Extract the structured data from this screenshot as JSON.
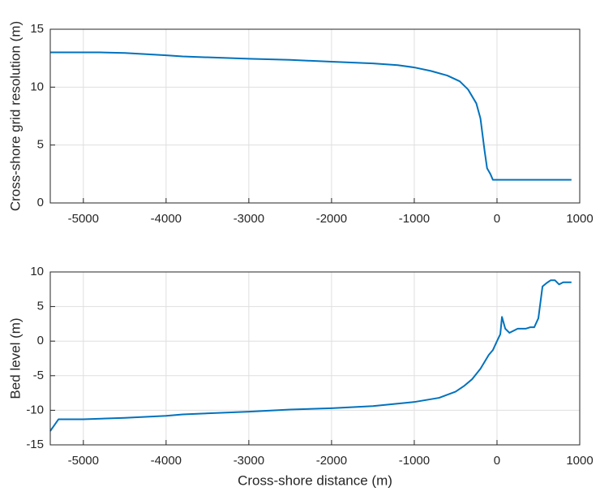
{
  "chart_data": [
    {
      "type": "line",
      "ylabel": "Cross-shore grid resolution (m)",
      "x": [
        -5400,
        -4800,
        -4500,
        -4000,
        -3800,
        -3000,
        -2500,
        -2000,
        -1500,
        -1200,
        -1000,
        -800,
        -600,
        -450,
        -350,
        -250,
        -200,
        -150,
        -120,
        -80,
        -50,
        0,
        900
      ],
      "values": [
        13,
        13,
        12.95,
        12.75,
        12.65,
        12.45,
        12.35,
        12.2,
        12.05,
        11.9,
        11.7,
        11.4,
        11.0,
        10.5,
        9.8,
        8.6,
        7.3,
        4.5,
        3.0,
        2.5,
        2.0,
        2.0,
        2.0
      ],
      "color": "#0072bd",
      "xlim": [
        -5400,
        1000
      ],
      "ylim": [
        0,
        15
      ],
      "xticks": [
        -5000,
        -4000,
        -3000,
        -2000,
        -1000,
        0,
        1000
      ],
      "yticks": [
        0,
        5,
        10,
        15
      ],
      "grid": true
    },
    {
      "type": "line",
      "ylabel": "Bed level (m)",
      "xlabel": "Cross-shore distance (m)",
      "x": [
        -5400,
        -5300,
        -5000,
        -4500,
        -4000,
        -3800,
        -3000,
        -2500,
        -2000,
        -1500,
        -1000,
        -700,
        -500,
        -400,
        -300,
        -200,
        -100,
        -50,
        0,
        40,
        60,
        100,
        150,
        250,
        350,
        400,
        450,
        500,
        550,
        600,
        650,
        700,
        750,
        800,
        900
      ],
      "values": [
        -13,
        -11.3,
        -11.3,
        -11.1,
        -10.8,
        -10.6,
        -10.2,
        -9.9,
        -9.7,
        -9.4,
        -8.8,
        -8.2,
        -7.3,
        -6.5,
        -5.5,
        -4.0,
        -2.0,
        -1.3,
        0,
        1.0,
        3.5,
        1.8,
        1.2,
        1.8,
        1.8,
        2.0,
        2.0,
        3.3,
        7.9,
        8.4,
        8.8,
        8.8,
        8.2,
        8.5,
        8.5
      ],
      "color": "#0072bd",
      "xlim": [
        -5400,
        1000
      ],
      "ylim": [
        -15,
        10
      ],
      "xticks": [
        -5000,
        -4000,
        -3000,
        -2000,
        -1000,
        0,
        1000
      ],
      "yticks": [
        -15,
        -10,
        -5,
        0,
        5,
        10
      ],
      "grid": true
    }
  ]
}
